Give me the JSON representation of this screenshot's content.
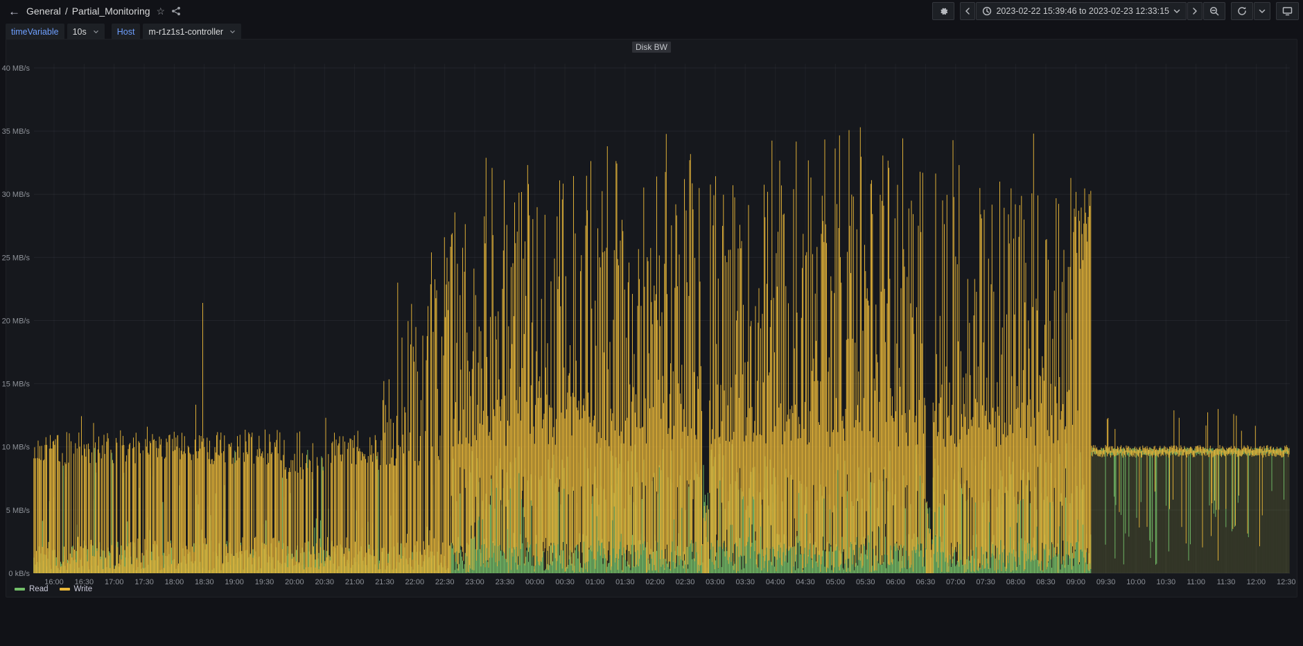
{
  "header": {
    "breadcrumb": {
      "section": "General",
      "separator": "/",
      "page": "Partial_Monitoring"
    },
    "icons": {
      "back_arrow": "←",
      "star": "☆"
    },
    "time_range": "2023-02-22 15:39:46 to 2023-02-23 12:33:15"
  },
  "variables": [
    {
      "label": "timeVariable",
      "value": "10s"
    },
    {
      "label": "Host",
      "value": "m-r1z1s1-controller"
    }
  ],
  "panel": {
    "title": "Disk BW"
  },
  "chart_data": {
    "type": "line",
    "title": "Disk BW",
    "unit": "MB/s",
    "x_start": "2023-02-22 15:39:46",
    "x_end": "2023-02-23 12:33:15",
    "ylim": [
      0,
      40
    ],
    "grid": true,
    "legend_position": "bottom-left",
    "y_tick_labels": [
      "40 MB/s",
      "35 MB/s",
      "30 MB/s",
      "25 MB/s",
      "20 MB/s",
      "15 MB/s",
      "10 MB/s",
      "5 MB/s",
      "0 kB/s"
    ],
    "y_tick_values": [
      40,
      35,
      30,
      25,
      20,
      15,
      10,
      5,
      0
    ],
    "x_tick_interval_min": 30,
    "x_tick_labels": [
      "16:00",
      "16:30",
      "17:00",
      "17:30",
      "18:00",
      "18:30",
      "19:00",
      "19:30",
      "20:00",
      "20:30",
      "21:00",
      "21:30",
      "22:00",
      "22:30",
      "23:00",
      "23:30",
      "00:00",
      "00:30",
      "01:00",
      "01:30",
      "02:00",
      "02:30",
      "03:00",
      "03:30",
      "04:00",
      "04:30",
      "05:00",
      "05:30",
      "06:00",
      "06:30",
      "07:00",
      "07:30",
      "08:00",
      "08:30",
      "09:00",
      "09:30",
      "10:00",
      "10:30",
      "11:00",
      "11:30",
      "12:00",
      "12:30"
    ],
    "legend": [
      {
        "name": "Read",
        "color": "#73BF69"
      },
      {
        "name": "Write",
        "color": "#EAB839"
      }
    ],
    "series_profile": {
      "description": "10s-resolution Read/Write disk bandwidth. Write bursts 0-11 MB/s from 15:40-21:25, ramps up 21:25-22:35, dense heavy writes ~10-35 MB/s from 22:35 to 09:15, then flat ~10 MB/s with dips until 12:33. Read mostly 0-3 MB/s with spikes to ~10, flat ~10 MB/s after 09:15.",
      "write_segments": [
        {
          "mode": "bursty",
          "from_h": -0.35,
          "to_h": 5.4,
          "active_p": 0.76,
          "peak_lo": 8.6,
          "peak_hi": 11.2,
          "spike_p": 0.05,
          "spike_hi": 13.4,
          "idle_hi": 2.6,
          "lull": [
            3.8,
            4.5
          ]
        },
        {
          "mode": "ramp",
          "from_h": 5.4,
          "to_h": 6.6,
          "active_p": 0.85,
          "base": 8.5,
          "grow": 16,
          "spike_p": 0.05
        },
        {
          "mode": "dense",
          "from_h": 6.6,
          "to_h": 17.25,
          "baseline": 10,
          "peak_hi": 35.3,
          "gaps": [
            [
              10.78,
              10.9
            ],
            [
              14.5,
              14.62
            ]
          ],
          "end_burst": [
            16.9,
            17.25
          ]
        },
        {
          "mode": "flat",
          "from_h": 17.25,
          "to_h": 20.56,
          "level": 9.9,
          "dip_p": 0.09,
          "dip_lo": 1.8,
          "dip_hi": 7.5,
          "spike_p": 0.03,
          "spike_hi": 13.2
        }
      ],
      "read_segments": [
        {
          "mode": "noisy",
          "from_h": -0.35,
          "to_h": 6.6,
          "typ_hi": 2.4,
          "spike_p": 0.13,
          "spike_lo": 3,
          "spike_hi": 10.2
        },
        {
          "mode": "noisy",
          "from_h": 6.6,
          "to_h": 17.25,
          "typ_hi": 3.0,
          "spike_p": 0.5,
          "spike_lo": 5,
          "spike_hi": 10.3
        },
        {
          "mode": "flat",
          "from_h": 17.25,
          "to_h": 20.56,
          "level": 9.8,
          "dip_p": 0.1,
          "dip_lo": 0.6,
          "dip_hi": 7
        }
      ],
      "events": [
        {
          "h": 2.48,
          "v": 21.4,
          "series": "Write",
          "note": "isolated spike ~18:29"
        },
        {
          "h": 5.72,
          "v": 23.0,
          "series": "Write",
          "note": "spike ~21:43"
        },
        {
          "h": 9.2,
          "v": 33.8,
          "series": "Write",
          "note": "tall spike ~01:12"
        },
        {
          "h": 13.42,
          "v": 35.3,
          "series": "Write",
          "note": "maximum ~05:25"
        },
        {
          "h": 16.3,
          "v": 34.8,
          "series": "Write",
          "note": "tall spike ~08:18"
        },
        {
          "h": 19.37,
          "v": 13.0,
          "series": "Write",
          "note": "spike ~11:22"
        }
      ]
    }
  },
  "colors": {
    "page_bg": "#111217",
    "panel_bg": "#16181d",
    "read": "#73BF69",
    "write": "#EAB839",
    "grid": "rgba(204,204,220,0.07)",
    "axis_text": "#8e9299",
    "variable_label": "#6e9fff"
  }
}
